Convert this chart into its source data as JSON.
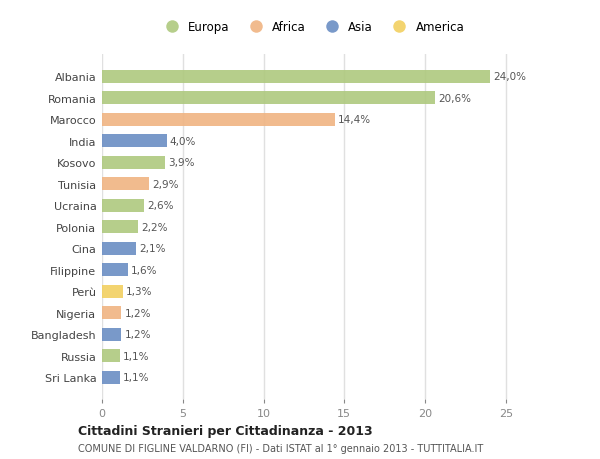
{
  "countries": [
    "Albania",
    "Romania",
    "Marocco",
    "India",
    "Kosovo",
    "Tunisia",
    "Ucraina",
    "Polonia",
    "Cina",
    "Filippine",
    "Perù",
    "Nigeria",
    "Bangladesh",
    "Russia",
    "Sri Lanka"
  ],
  "values": [
    24.0,
    20.6,
    14.4,
    4.0,
    3.9,
    2.9,
    2.6,
    2.2,
    2.1,
    1.6,
    1.3,
    1.2,
    1.2,
    1.1,
    1.1
  ],
  "labels": [
    "24,0%",
    "20,6%",
    "14,4%",
    "4,0%",
    "3,9%",
    "2,9%",
    "2,6%",
    "2,2%",
    "2,1%",
    "1,6%",
    "1,3%",
    "1,2%",
    "1,2%",
    "1,1%",
    "1,1%"
  ],
  "continents": [
    "Europa",
    "Europa",
    "Africa",
    "Asia",
    "Europa",
    "Africa",
    "Europa",
    "Europa",
    "Asia",
    "Asia",
    "America",
    "Africa",
    "Asia",
    "Europa",
    "Asia"
  ],
  "colors": {
    "Europa": "#aec97e",
    "Africa": "#f0b482",
    "Asia": "#6b8ec4",
    "America": "#f2d060"
  },
  "xlim": [
    0,
    26
  ],
  "xticks": [
    0,
    5,
    10,
    15,
    20,
    25
  ],
  "title": "Cittadini Stranieri per Cittadinanza - 2013",
  "subtitle": "COMUNE DI FIGLINE VALDARNO (FI) - Dati ISTAT al 1° gennaio 2013 - TUTTITALIA.IT",
  "background_color": "#ffffff",
  "plot_bg_color": "#ffffff",
  "grid_color": "#e0e0e0",
  "legend_order": [
    "Europa",
    "Africa",
    "Asia",
    "America"
  ]
}
